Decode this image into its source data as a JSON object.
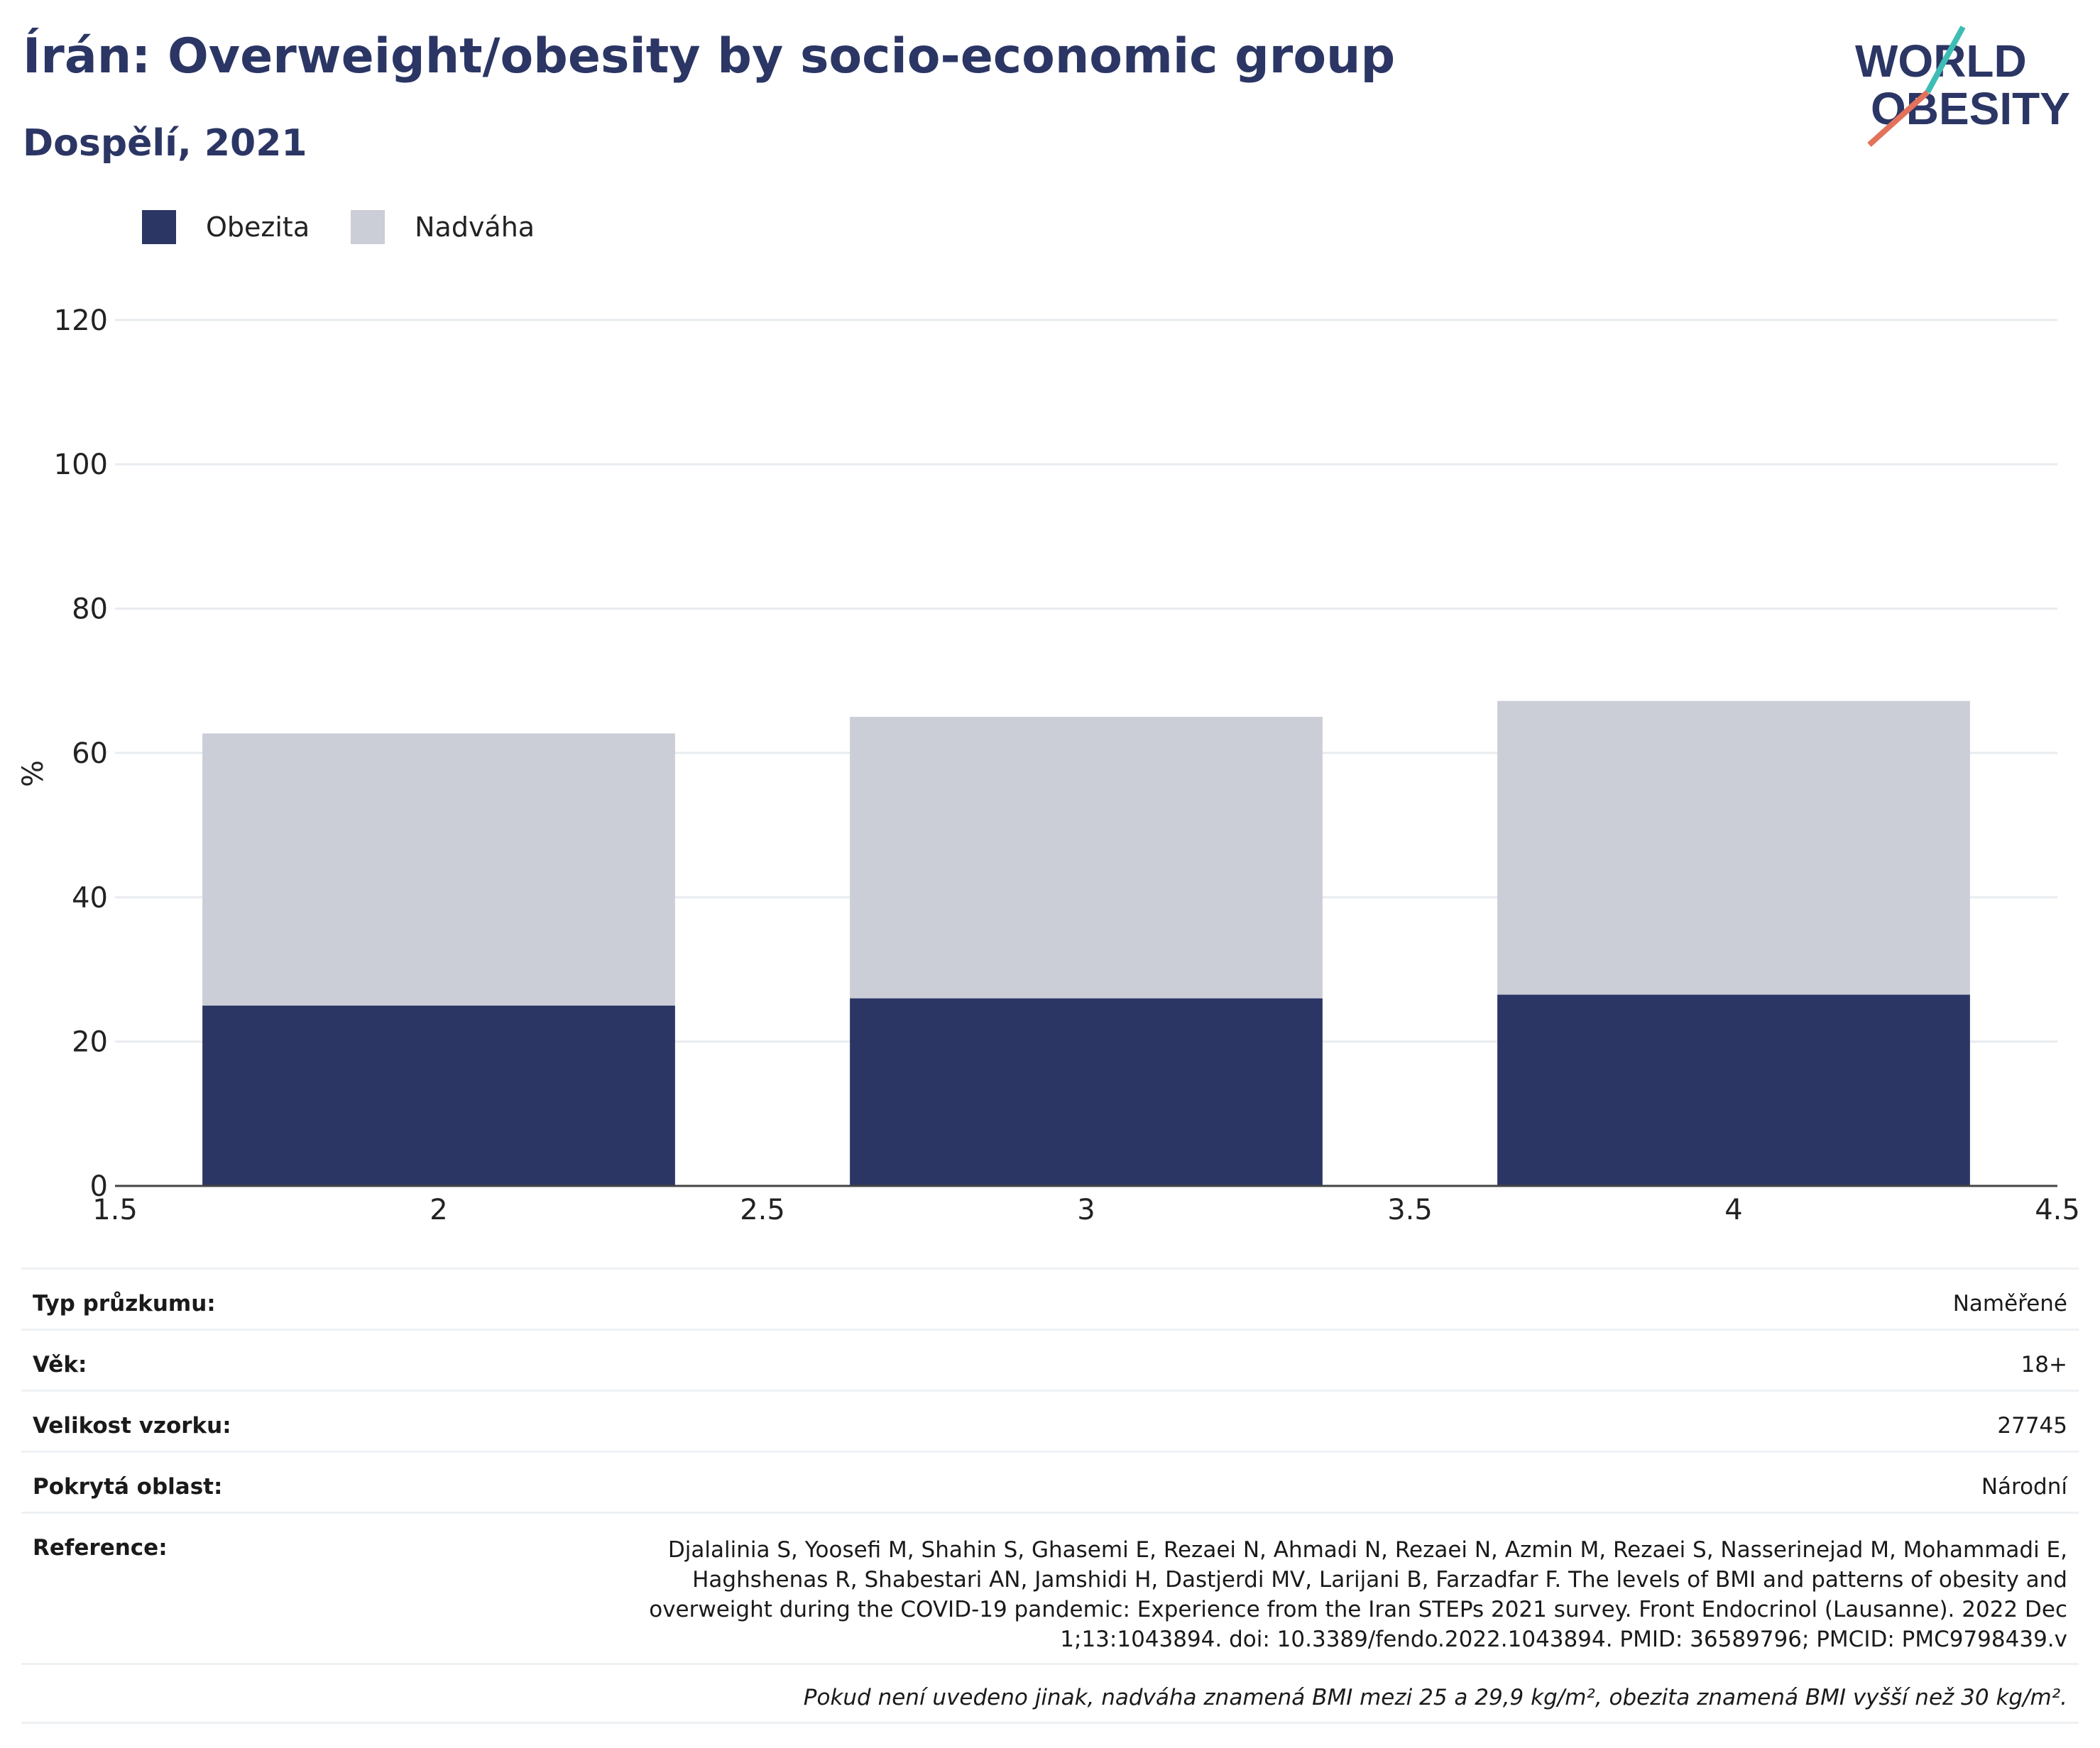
{
  "title": "Írán: Overweight/obesity by socio-economic group",
  "subtitle": "Dospělí, 2021",
  "logo": {
    "line1": "WORLD",
    "line2": "OBESITY",
    "colors": {
      "text": "#2b3665",
      "teal": "#3ebdb4",
      "coral": "#e2725b"
    }
  },
  "legend": [
    {
      "label": "Obezita",
      "color": "#2b3665"
    },
    {
      "label": "Nadváha",
      "color": "#cbcdd7"
    }
  ],
  "chart_data": {
    "type": "bar",
    "stacked": true,
    "x": [
      2,
      3,
      4
    ],
    "series": [
      {
        "name": "Obezita",
        "color": "#2b3665",
        "values": [
          25.0,
          26.0,
          26.5
        ]
      },
      {
        "name": "Nadváha",
        "color": "#cbcdd7",
        "values": [
          37.7,
          39.0,
          40.7
        ]
      }
    ],
    "totals": [
      62.7,
      65.0,
      67.2
    ],
    "xlabel": "",
    "ylabel": "%",
    "xlim": [
      1.5,
      4.5
    ],
    "ylim": [
      0,
      125
    ],
    "xticks": [
      "1.5",
      "2",
      "2.5",
      "3",
      "3.5",
      "4",
      "4.5"
    ],
    "yticks": [
      "0",
      "20",
      "40",
      "60",
      "80",
      "100",
      "120"
    ],
    "grid": true,
    "legend_position": "top-left"
  },
  "info": {
    "survey_type": {
      "label": "Typ průzkumu:",
      "value": "Naměřené"
    },
    "age": {
      "label": "Věk:",
      "value": "18+"
    },
    "sample_size": {
      "label": "Velikost vzorku:",
      "value": "27745"
    },
    "area": {
      "label": "Pokrytá oblast:",
      "value": "Národní"
    },
    "reference": {
      "label": "Reference:",
      "value": "Djalalinia S, Yoosefi M, Shahin S, Ghasemi E, Rezaei N, Ahmadi N, Rezaei N, Azmin M, Rezaei S, Nasserinejad M, Mohammadi E, Haghshenas R, Shabestari AN, Jamshidi H, Dastjerdi MV, Larijani B, Farzadfar F. The levels of BMI and patterns of obesity and overweight during the COVID-19 pandemic: Experience from the Iran STEPs 2021 survey. Front Endocrinol (Lausanne). 2022 Dec 1;13:1043894. doi: 10.3389/fendo.2022.1043894. PMID: 36589796; PMCID: PMC9798439.v"
    },
    "note": "Pokud není uvedeno jinak, nadváha znamená BMI mezi 25 a 29,9 kg/m², obezita znamená BMI vyšší než 30 kg/m²."
  }
}
